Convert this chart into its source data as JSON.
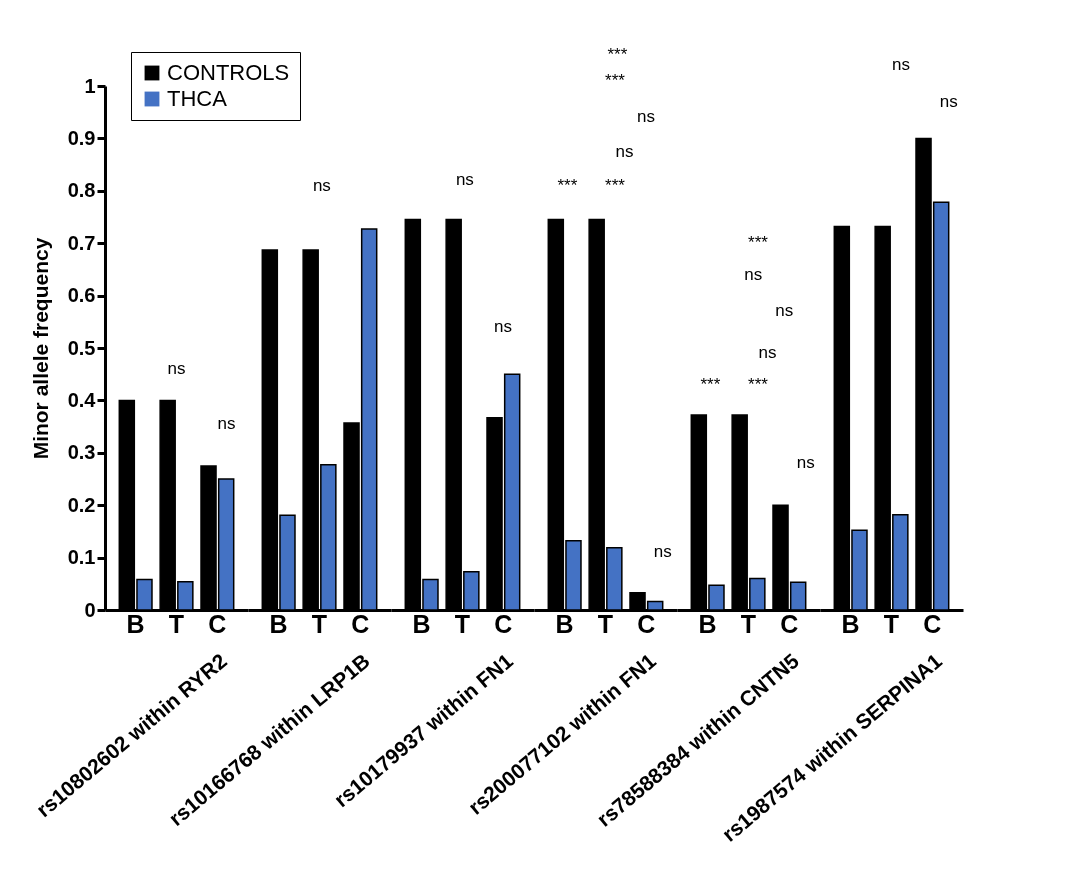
{
  "chart_data": [
    {
      "type": "bar",
      "categories": [
        "B",
        "T",
        "C"
      ],
      "xlabel": "rs10802602 within RYR2",
      "ylabel": "Minor allele frequency",
      "ylim": [
        0,
        1
      ],
      "yticks": [
        0,
        0.1,
        0.2,
        0.3,
        0.4,
        0.5,
        0.6,
        0.7,
        0.8,
        0.9,
        1
      ],
      "legend": "top right",
      "series": [
        {
          "name": "CONTROLS",
          "color": "#000000",
          "values": [
            0.4,
            0.4,
            0.275
          ]
        },
        {
          "name": "THCA",
          "color": "#4472c4",
          "values": [
            0.058,
            0.054,
            0.25
          ]
        }
      ],
      "annotations": [
        "ns",
        "ns"
      ]
    },
    {
      "type": "bar",
      "categories": [
        "B",
        "T",
        "C"
      ],
      "xlabel": "rs10166768 within LRP1B",
      "ylim": [
        0,
        1
      ],
      "tick_labels": "x",
      "series": [
        {
          "name": "CONTROLS",
          "color": "#000000",
          "values": [
            0.687,
            0.687,
            0.357
          ]
        },
        {
          "name": "THCA",
          "color": "#4472c4",
          "values": [
            0.181,
            0.277,
            0.727
          ]
        }
      ],
      "annotations": [
        "ns"
      ]
    },
    {
      "type": "bar",
      "categories": [
        "B",
        "T",
        "C"
      ],
      "xlabel": "rs10179937 within FN1",
      "ylim": [
        0,
        1
      ],
      "tick_labels": "x",
      "series": [
        {
          "name": "CONTROLS",
          "color": "#000000",
          "values": [
            0.745,
            0.745,
            0.367
          ]
        },
        {
          "name": "THCA",
          "color": "#4472c4",
          "values": [
            0.058,
            0.073,
            0.45
          ]
        }
      ],
      "annotations": [
        "ns",
        "ns"
      ]
    },
    {
      "type": "bar",
      "categories": [
        "B",
        "T",
        "C"
      ],
      "xlabel": "rs200077102 within FN1",
      "ylim": [
        0,
        1
      ],
      "tick_labels": "x",
      "series": [
        {
          "name": "CONTROLS",
          "color": "#000000",
          "values": [
            0.745,
            0.745,
            0.033
          ]
        },
        {
          "name": "THCA",
          "color": "#4472c4",
          "values": [
            0.132,
            0.119,
            0.016
          ]
        }
      ],
      "annotations": [
        "***",
        "***",
        "ns",
        "ns",
        "***",
        "***",
        "ns"
      ]
    },
    {
      "type": "bar",
      "categories": [
        "B",
        "T",
        "C"
      ],
      "xlabel": "rs78588384 within CNTN5",
      "ylim": [
        0,
        1
      ],
      "tick_labels": "x",
      "series": [
        {
          "name": "CONTROLS",
          "color": "#000000",
          "values": [
            0.372,
            0.372,
            0.2
          ]
        },
        {
          "name": "THCA",
          "color": "#4472c4",
          "values": [
            0.047,
            0.06,
            0.053
          ]
        }
      ],
      "annotations": [
        "***",
        "ns",
        "ns",
        "ns",
        "***",
        "***",
        "ns"
      ]
    },
    {
      "type": "bar",
      "categories": [
        "B",
        "T",
        "C"
      ],
      "xlabel": "rs1987574 within SERPINA1",
      "ylim": [
        0,
        1
      ],
      "tick_labels": "x",
      "series": [
        {
          "name": "CONTROLS",
          "color": "#000000",
          "values": [
            0.732,
            0.732,
            0.9
          ]
        },
        {
          "name": "THCA",
          "color": "#4472c4",
          "values": [
            0.152,
            0.182,
            0.778
          ]
        }
      ],
      "annotations": [
        "ns",
        "ns"
      ]
    }
  ]
}
